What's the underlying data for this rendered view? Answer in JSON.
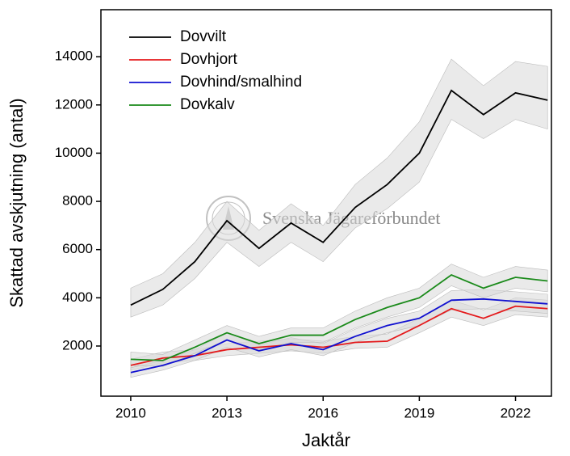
{
  "chart_data": {
    "type": "line",
    "x": [
      2010,
      2011,
      2012,
      2013,
      2014,
      2015,
      2016,
      2017,
      2018,
      2019,
      2020,
      2021,
      2022,
      2023
    ],
    "series": [
      {
        "name": "Dovvilt",
        "color": "#000000",
        "values": [
          3700,
          4350,
          5500,
          7200,
          6050,
          7100,
          6300,
          7750,
          8700,
          10000,
          12600,
          11600,
          12500,
          12200
        ],
        "lower": [
          3200,
          3700,
          4800,
          6300,
          5300,
          6300,
          5500,
          6900,
          7700,
          8800,
          11400,
          10600,
          11400,
          11000
        ],
        "upper": [
          4400,
          5000,
          6300,
          8000,
          6800,
          7900,
          7000,
          8700,
          9800,
          11300,
          13900,
          12800,
          13800,
          13600
        ]
      },
      {
        "name": "Dovhjort",
        "color": "#e41a1c",
        "values": [
          1200,
          1500,
          1600,
          1850,
          1950,
          2050,
          1950,
          2150,
          2200,
          2850,
          3550,
          3150,
          3650,
          3550
        ],
        "lower": [
          1000,
          1300,
          1400,
          1600,
          1700,
          1800,
          1700,
          1900,
          1950,
          2550,
          3200,
          2850,
          3300,
          3200
        ],
        "upper": [
          1450,
          1750,
          1850,
          2100,
          2200,
          2300,
          2200,
          2400,
          2500,
          3150,
          3900,
          3500,
          4000,
          3900
        ]
      },
      {
        "name": "Dovhind/smalhind",
        "color": "#1010d0",
        "values": [
          900,
          1200,
          1600,
          2250,
          1800,
          2100,
          1850,
          2400,
          2850,
          3150,
          3900,
          3950,
          3850,
          3750
        ],
        "lower": [
          700,
          1000,
          1400,
          1950,
          1550,
          1850,
          1600,
          2150,
          2550,
          2850,
          3500,
          3550,
          3450,
          3350
        ],
        "upper": [
          1100,
          1400,
          1850,
          2550,
          2050,
          2350,
          2100,
          2700,
          3150,
          3450,
          4300,
          4350,
          4250,
          4150
        ]
      },
      {
        "name": "Dovkalv",
        "color": "#1a8a1a",
        "values": [
          1450,
          1400,
          1950,
          2550,
          2100,
          2450,
          2450,
          3100,
          3600,
          4000,
          4950,
          4400,
          4850,
          4700
        ],
        "lower": [
          1200,
          1150,
          1700,
          2250,
          1850,
          2150,
          2150,
          2750,
          3200,
          3600,
          4500,
          4000,
          4400,
          4250
        ],
        "upper": [
          1750,
          1650,
          2250,
          2850,
          2400,
          2750,
          2750,
          3450,
          4000,
          4400,
          5400,
          4850,
          5300,
          5150
        ]
      }
    ],
    "band_color": "#d9d9d9",
    "xlabel": "Jaktår",
    "ylabel": "Skattad avskjutning (antal)",
    "watermark": "Svenska Jägareförbundet",
    "xlim": [
      2009.07,
      2023.12
    ],
    "xticks": [
      2010,
      2013,
      2016,
      2019,
      2022
    ],
    "ylim": [
      -80,
      15950
    ],
    "yticks": [
      2000,
      4000,
      6000,
      8000,
      10000,
      12000,
      14000
    ],
    "legend": "upper left"
  }
}
